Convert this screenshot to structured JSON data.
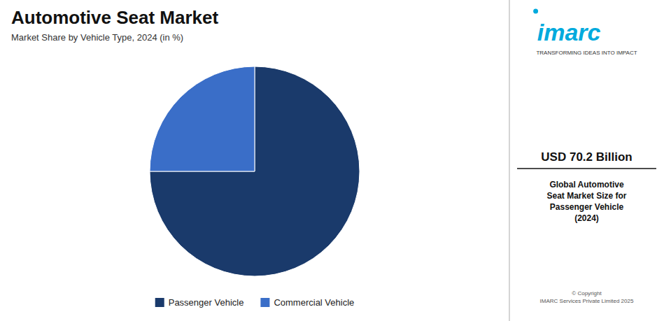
{
  "chart_data": {
    "type": "pie",
    "title": "Automotive Seat Market",
    "subtitle": "Market Share by Vehicle Type, 2024 (in %)",
    "categories": [
      "Passenger Vehicle",
      "Commercial Vehicle"
    ],
    "values": [
      75,
      25
    ],
    "colors": [
      "#1a3a6b",
      "#3a6ec8"
    ],
    "legend": "bottom",
    "annotations": [
      "imarc",
      "TRANSFORMING IDEAS INTO IMPACT",
      "USD 70.2 Billion",
      "Global Automotive\nSeat Market Size for\nPassenger Vehicle\n(2024)",
      "© Copyright\nIMARC Services Private Limited 2025"
    ]
  }
}
